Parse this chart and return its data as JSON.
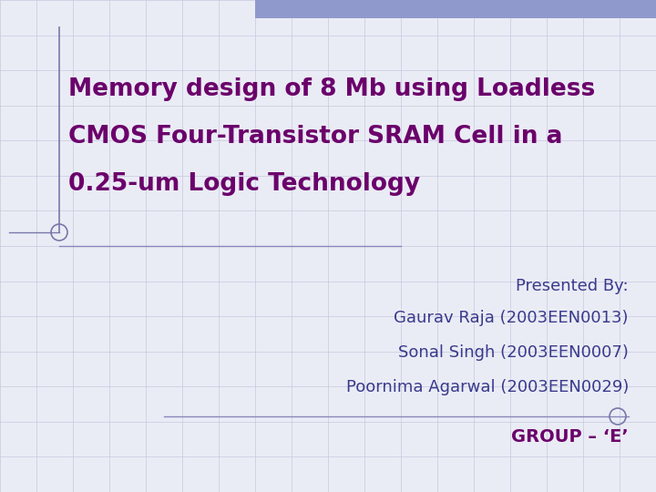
{
  "bg_color": "#eaecf5",
  "grid_color": "#c5c8e0",
  "title_line1": "Memory design of 8 Mb using Loadless",
  "title_line2": "CMOS Four-Transistor SRAM Cell in a",
  "title_line3": "0.25-um Logic Technology",
  "title_color": "#6b006b",
  "title_fontsize": 19,
  "presenter_label": "Presented By:",
  "names": [
    "Gaurav Raja (2003EEN0013)",
    "Sonal Singh (2003EEN0007)",
    "Poornima Agarwal (2003EEN0029)"
  ],
  "group_text": "GROUP – ‘E’",
  "presenter_color": "#3a3a8c",
  "group_color": "#6b006b",
  "presenter_fontsize": 13,
  "names_fontsize": 13,
  "group_fontsize": 14,
  "top_bar_color": "#9099cc",
  "accent_line_color": "#7878aa",
  "divider_color": "#8888bb",
  "circle_color": "#7878aa",
  "grid_n_cols": 18,
  "grid_n_rows": 14
}
